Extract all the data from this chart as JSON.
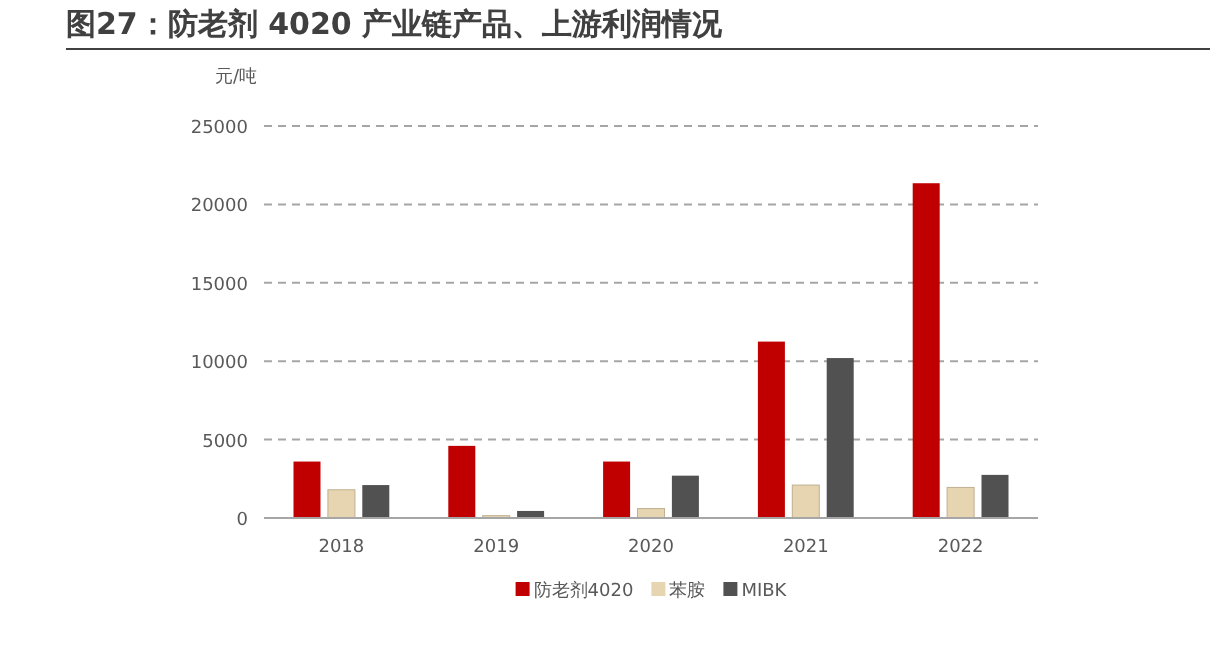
{
  "chart_data": {
    "type": "bar",
    "title": "图27：防老剂 4020 产业链产品、上游利润情况",
    "ylabel": "元/吨",
    "categories": [
      "2018",
      "2019",
      "2020",
      "2021",
      "2022"
    ],
    "series": [
      {
        "name": "防老剂4020",
        "color": "#c00000",
        "values": [
          3600,
          4600,
          3600,
          11250,
          21350
        ]
      },
      {
        "name": "苯胺",
        "color": "#e6d5b0",
        "values": [
          1800,
          150,
          600,
          2100,
          1950
        ]
      },
      {
        "name": "MIBK",
        "color": "#515151",
        "values": [
          2100,
          450,
          2700,
          10200,
          2750
        ]
      }
    ],
    "ylim": [
      0,
      25000
    ],
    "yticks": [
      0,
      5000,
      10000,
      15000,
      20000,
      25000
    ],
    "grid": "y",
    "legend": "bottom"
  }
}
